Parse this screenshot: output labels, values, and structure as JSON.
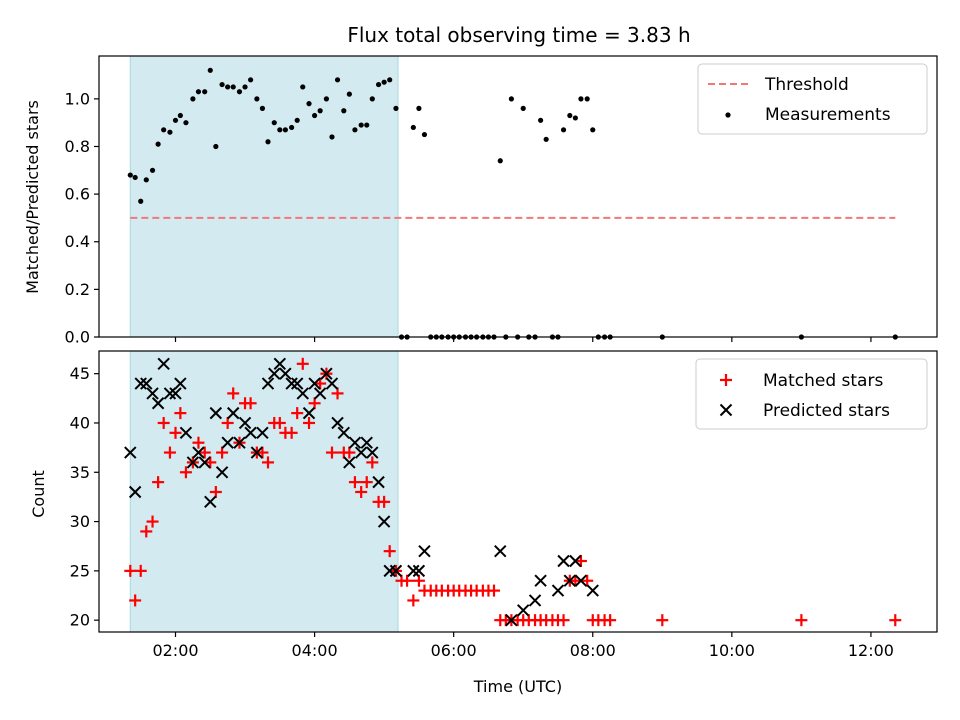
{
  "chart_data": {
    "type": "scatter",
    "title": "Flux total observing time = 3.83 h",
    "xlabel": "Time (UTC)",
    "x_unit": "hours UTC",
    "xlim": [
      0.9,
      12.95
    ],
    "xticks": [
      2,
      4,
      6,
      8,
      10,
      12
    ],
    "xtick_labels": [
      "02:00",
      "04:00",
      "06:00",
      "08:00",
      "10:00",
      "12:00"
    ],
    "shaded_interval": {
      "start": 1.35,
      "end": 5.2,
      "color": "#d3eaf1"
    },
    "top": {
      "ylabel": "Matched/Predicted stars",
      "ylim": [
        0,
        1.18
      ],
      "yticks": [
        0.0,
        0.2,
        0.4,
        0.6,
        0.8,
        1.0
      ],
      "ytick_labels": [
        "0.0",
        "0.2",
        "0.4",
        "0.6",
        "0.8",
        "1.0"
      ],
      "legend": {
        "position": "upper right",
        "threshold_label": "Threshold",
        "measurements_label": "Measurements"
      },
      "threshold": {
        "y": 0.5,
        "x_start": 1.35,
        "x_end": 12.35,
        "color": "#f07878"
      },
      "measurements": {
        "color": "#000000",
        "x": [
          1.35,
          1.42,
          1.5,
          1.58,
          1.67,
          1.75,
          1.83,
          1.92,
          2.0,
          2.07,
          2.15,
          2.25,
          2.33,
          2.42,
          2.5,
          2.58,
          2.67,
          2.75,
          2.83,
          2.92,
          3.0,
          3.08,
          3.17,
          3.25,
          3.33,
          3.42,
          3.5,
          3.58,
          3.67,
          3.75,
          3.83,
          3.92,
          4.0,
          4.08,
          4.17,
          4.25,
          4.33,
          4.42,
          4.5,
          4.58,
          4.67,
          4.75,
          4.83,
          4.92,
          5.0,
          5.08,
          5.17,
          5.25,
          5.33,
          5.42,
          5.5,
          5.58,
          5.67,
          5.75,
          5.83,
          5.92,
          6.0,
          6.08,
          6.17,
          6.25,
          6.33,
          6.42,
          6.5,
          6.58,
          6.67,
          6.75,
          6.83,
          6.92,
          7.0,
          7.08,
          7.17,
          7.25,
          7.33,
          7.42,
          7.5,
          7.58,
          7.67,
          7.75,
          7.83,
          7.92,
          8.0,
          8.08,
          8.17,
          8.25,
          9.0,
          11.0,
          12.35
        ],
        "y": [
          0.68,
          0.67,
          0.57,
          0.66,
          0.7,
          0.81,
          0.87,
          0.86,
          0.91,
          0.93,
          0.9,
          1.0,
          1.03,
          1.03,
          1.12,
          0.8,
          1.06,
          1.05,
          1.05,
          1.03,
          1.05,
          1.08,
          1.0,
          0.96,
          0.82,
          0.9,
          0.87,
          0.87,
          0.88,
          0.91,
          1.05,
          0.98,
          0.93,
          0.95,
          1.0,
          0.84,
          1.08,
          0.95,
          1.02,
          0.87,
          0.89,
          0.89,
          1.0,
          1.06,
          1.07,
          1.08,
          0.96,
          0.0,
          0.0,
          0.88,
          0.96,
          0.85,
          0.0,
          0.0,
          0.0,
          0.0,
          0.0,
          0.0,
          0.0,
          0.0,
          0.0,
          0.0,
          0.0,
          0.0,
          0.74,
          0.0,
          1.0,
          0.0,
          0.96,
          0.0,
          0.0,
          0.91,
          0.83,
          0.0,
          0.0,
          0.87,
          0.93,
          0.92,
          1.0,
          1.0,
          0.87,
          0.0,
          0.0,
          0.0,
          0.0,
          0.0,
          0.0
        ]
      }
    },
    "bottom": {
      "ylabel": "Count",
      "ylim": [
        18.8,
        47.3
      ],
      "yticks": [
        20,
        25,
        30,
        35,
        40,
        45
      ],
      "ytick_labels": [
        "20",
        "25",
        "30",
        "35",
        "40",
        "45"
      ],
      "legend": {
        "position": "upper right",
        "matched_label": "Matched stars",
        "predicted_label": "Predicted stars"
      },
      "matched": {
        "color": "#ff0000",
        "x": [
          1.35,
          1.42,
          1.5,
          1.58,
          1.67,
          1.75,
          1.83,
          1.92,
          2.0,
          2.07,
          2.15,
          2.25,
          2.33,
          2.42,
          2.5,
          2.58,
          2.67,
          2.75,
          2.83,
          2.92,
          3.0,
          3.08,
          3.17,
          3.25,
          3.33,
          3.42,
          3.5,
          3.58,
          3.67,
          3.75,
          3.83,
          3.92,
          4.0,
          4.08,
          4.17,
          4.25,
          4.33,
          4.42,
          4.5,
          4.58,
          4.67,
          4.75,
          4.83,
          4.92,
          5.0,
          5.08,
          5.17,
          5.25,
          5.33,
          5.42,
          5.5,
          5.58,
          5.67,
          5.75,
          5.83,
          5.92,
          6.0,
          6.08,
          6.17,
          6.25,
          6.33,
          6.42,
          6.5,
          6.58,
          6.67,
          6.75,
          6.83,
          6.92,
          7.0,
          7.08,
          7.17,
          7.25,
          7.33,
          7.42,
          7.5,
          7.58,
          7.67,
          7.75,
          7.83,
          7.92,
          8.0,
          8.08,
          8.17,
          8.25,
          9.0,
          11.0,
          12.35
        ],
        "y": [
          25,
          22,
          25,
          29,
          30,
          34,
          40,
          37,
          39,
          41,
          35,
          36,
          38,
          37,
          36,
          33,
          37,
          40,
          43,
          38,
          42,
          42,
          37,
          37,
          36,
          40,
          40,
          39,
          39,
          41,
          46,
          40,
          42,
          44,
          45,
          37,
          43,
          37,
          37,
          34,
          33,
          34,
          36,
          32,
          32,
          27,
          25,
          24,
          24,
          22,
          24,
          23,
          23,
          23,
          23,
          23,
          23,
          23,
          23,
          23,
          23,
          23,
          23,
          23,
          20,
          20,
          20,
          20,
          20,
          20,
          20,
          20,
          20,
          20,
          20,
          20,
          24,
          24,
          26,
          24,
          20,
          20,
          20,
          20,
          20,
          20,
          20
        ]
      },
      "predicted": {
        "color": "#000000",
        "x": [
          1.35,
          1.42,
          1.5,
          1.58,
          1.67,
          1.75,
          1.83,
          1.92,
          2.0,
          2.07,
          2.15,
          2.25,
          2.33,
          2.42,
          2.5,
          2.58,
          2.67,
          2.75,
          2.83,
          2.92,
          3.0,
          3.08,
          3.17,
          3.25,
          3.33,
          3.42,
          3.5,
          3.58,
          3.67,
          3.75,
          3.83,
          3.92,
          4.0,
          4.08,
          4.17,
          4.25,
          4.33,
          4.42,
          4.5,
          4.58,
          4.67,
          4.75,
          4.83,
          4.92,
          5.0,
          5.08,
          5.17,
          5.42,
          5.5,
          5.58,
          6.67,
          6.83,
          7.0,
          7.17,
          7.25,
          7.5,
          7.58,
          7.67,
          7.75,
          7.83,
          8.0
        ],
        "y": [
          37,
          33,
          44,
          44,
          43,
          42,
          46,
          43,
          43,
          44,
          39,
          36,
          37,
          36,
          32,
          41,
          35,
          38,
          41,
          38,
          40,
          39,
          37,
          39,
          44,
          45,
          46,
          45,
          44,
          44,
          43,
          41,
          44,
          43,
          45,
          44,
          40,
          39,
          36,
          38,
          37,
          38,
          37,
          34,
          30,
          25,
          25,
          25,
          25,
          27,
          27,
          20,
          21,
          22,
          24,
          23,
          26,
          24,
          26,
          24,
          23
        ]
      }
    }
  }
}
